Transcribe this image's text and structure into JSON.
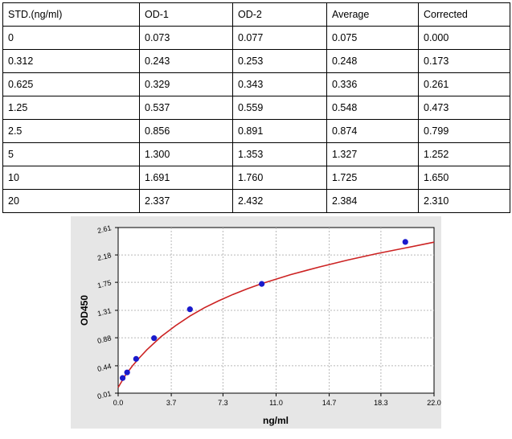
{
  "table": {
    "headers": [
      "STD.(ng/ml)",
      "OD-1",
      "OD-2",
      "Average",
      "Corrected"
    ],
    "rows": [
      [
        "0",
        "0.073",
        "0.077",
        "0.075",
        "0.000"
      ],
      [
        "0.312",
        "0.243",
        "0.253",
        "0.248",
        "0.173"
      ],
      [
        "0.625",
        "0.329",
        "0.343",
        "0.336",
        "0.261"
      ],
      [
        "1.25",
        "0.537",
        "0.559",
        "0.548",
        "0.473"
      ],
      [
        "2.5",
        "0.856",
        "0.891",
        "0.874",
        "0.799"
      ],
      [
        "5",
        "1.300",
        "1.353",
        "1.327",
        "1.252"
      ],
      [
        "10",
        "1.691",
        "1.760",
        "1.725",
        "1.650"
      ],
      [
        "20",
        "2.337",
        "2.432",
        "2.384",
        "2.310"
      ]
    ]
  },
  "chart_data": {
    "type": "scatter",
    "title": "",
    "xlabel": "ng/ml",
    "ylabel": "OD450",
    "xlim": [
      0.0,
      22.0
    ],
    "ylim": [
      0.01,
      2.61
    ],
    "x_ticks": [
      "0.0",
      "3.7",
      "7.3",
      "11.0",
      "14.7",
      "18.3",
      "22.0"
    ],
    "y_ticks": [
      "0.01",
      "0.44",
      "0.88",
      "1.31",
      "1.75",
      "2.18",
      "2.61"
    ],
    "grid": true,
    "series": [
      {
        "points_x": [
          0.312,
          0.625,
          1.25,
          2.5,
          5,
          10,
          20
        ],
        "points_y": [
          0.248,
          0.336,
          0.548,
          0.874,
          1.327,
          1.725,
          2.384
        ],
        "marker_color": "#1a1acc"
      }
    ],
    "fit_curve": {
      "color": "#cc2222",
      "x": [
        0.0,
        0.5,
        1,
        1.5,
        2,
        3,
        4,
        5,
        6,
        7,
        8,
        9,
        10,
        12,
        14,
        16,
        18,
        20,
        22
      ],
      "y": [
        0.1,
        0.29,
        0.44,
        0.57,
        0.69,
        0.9,
        1.07,
        1.22,
        1.35,
        1.46,
        1.56,
        1.65,
        1.73,
        1.87,
        1.99,
        2.1,
        2.2,
        2.29,
        2.38
      ]
    }
  }
}
